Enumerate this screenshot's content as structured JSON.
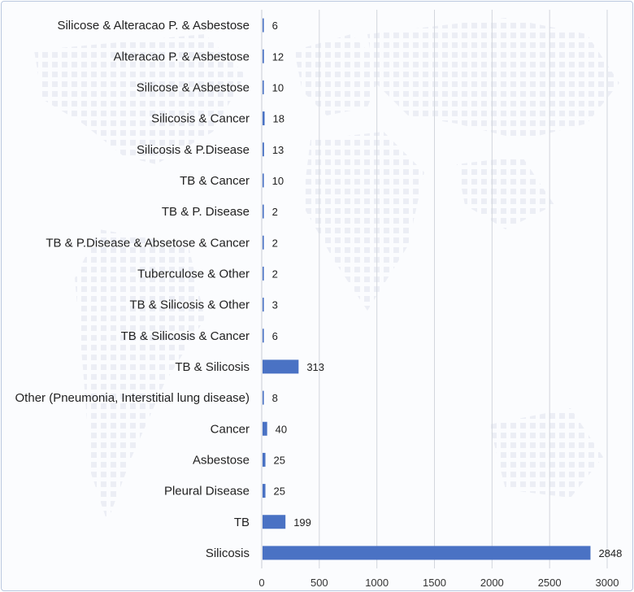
{
  "colors": {
    "bar": "#4a72c4",
    "grid": "#d2d6dd",
    "axis": "#c8ccd4",
    "text": "#222222",
    "frame": "#b9c7df"
  },
  "chart_data": {
    "type": "bar",
    "orientation": "horizontal",
    "title": "",
    "xlabel": "",
    "ylabel": "",
    "xlim": [
      0,
      3000
    ],
    "x_ticks": [
      0,
      500,
      1000,
      1500,
      2000,
      2500,
      3000
    ],
    "grid": "vertical",
    "legend": "none",
    "data_labels": true,
    "categories": [
      "Silicose & Alteracao P. & Asbestose",
      "Alteracao P. & Asbestose",
      "Silicose & Asbestose",
      "Silicosis & Cancer",
      "Silicosis & P.Disease",
      "TB & Cancer",
      "TB & P. Disease",
      "TB & P.Disease & Absetose & Cancer",
      "Tuberculose & Other",
      "TB & Silicosis & Other",
      "TB & Silicosis &  Cancer",
      "TB & Silicosis",
      "Other (Pneumonia, Interstitial lung disease)",
      "Cancer",
      "Asbestose",
      "Pleural Disease",
      "TB",
      "Silicosis"
    ],
    "values": [
      6,
      12,
      10,
      18,
      13,
      10,
      2,
      2,
      2,
      3,
      6,
      313,
      8,
      40,
      25,
      25,
      199,
      2848
    ]
  }
}
